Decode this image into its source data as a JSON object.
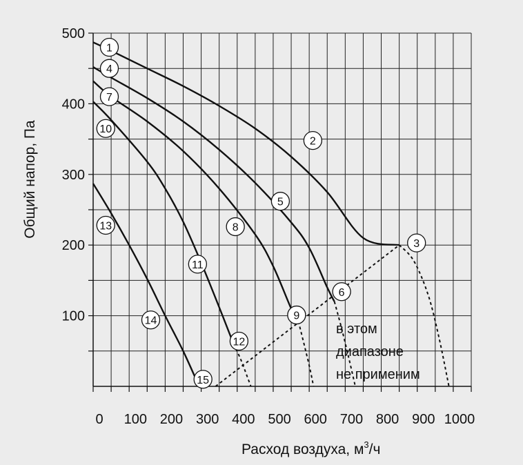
{
  "chart_data": {
    "type": "line",
    "title": "",
    "xlabel": "Расход воздуха, м",
    "xlabel_sup": "3",
    "xlabel_suffix": "/ч",
    "ylabel": "Общий напор, Па",
    "xlim": [
      -50,
      1000
    ],
    "ylim": [
      0,
      500
    ],
    "x_ticks": [
      0,
      100,
      200,
      300,
      400,
      500,
      600,
      700,
      800,
      900,
      1000
    ],
    "x_tick_labels": [
      "0",
      "100",
      "200",
      "300",
      "400",
      "500",
      "600",
      "700",
      "800",
      "900",
      "1000"
    ],
    "y_ticks": [
      100,
      200,
      300,
      400,
      500
    ],
    "y_tick_labels": [
      "100",
      "200",
      "300",
      "400",
      "500"
    ],
    "grid": true,
    "series": [
      {
        "points": [
          [
            -50,
            487
          ],
          [
            0,
            475
          ],
          [
            100,
            450
          ],
          [
            200,
            425
          ],
          [
            300,
            397
          ],
          [
            400,
            365
          ],
          [
            500,
            325
          ],
          [
            600,
            275
          ],
          [
            700,
            210
          ],
          [
            800,
            200
          ]
        ]
      },
      {
        "points": [
          [
            -50,
            452
          ],
          [
            0,
            437
          ],
          [
            100,
            408
          ],
          [
            200,
            375
          ],
          [
            300,
            335
          ],
          [
            400,
            288
          ],
          [
            500,
            232
          ],
          [
            550,
            196
          ],
          [
            600,
            140
          ],
          [
            620,
            120
          ]
        ]
      },
      {
        "points": [
          [
            -50,
            432
          ],
          [
            0,
            410
          ],
          [
            100,
            375
          ],
          [
            200,
            333
          ],
          [
            300,
            280
          ],
          [
            400,
            215
          ],
          [
            450,
            170
          ],
          [
            500,
            110
          ],
          [
            520,
            92
          ]
        ]
      },
      {
        "points": [
          [
            -50,
            403
          ],
          [
            0,
            377
          ],
          [
            100,
            318
          ],
          [
            150,
            280
          ],
          [
            200,
            233
          ],
          [
            250,
            175
          ],
          [
            300,
            112
          ],
          [
            340,
            60
          ]
        ]
      },
      {
        "points": [
          [
            -50,
            287
          ],
          [
            0,
            245
          ],
          [
            50,
            200
          ],
          [
            100,
            152
          ],
          [
            150,
            100
          ],
          [
            200,
            50
          ],
          [
            240,
            5
          ]
        ]
      }
    ],
    "dashed_extensions": [
      {
        "points": [
          [
            800,
            200
          ],
          [
            840,
            178
          ],
          [
            880,
            130
          ],
          [
            910,
            70
          ],
          [
            938,
            0
          ]
        ]
      },
      {
        "points": [
          [
            620,
            120
          ],
          [
            640,
            82
          ],
          [
            660,
            40
          ],
          [
            678,
            0
          ]
        ]
      },
      {
        "points": [
          [
            520,
            92
          ],
          [
            538,
            55
          ],
          [
            552,
            25
          ],
          [
            562,
            0
          ]
        ]
      },
      {
        "points": [
          [
            340,
            60
          ],
          [
            360,
            38
          ],
          [
            377,
            15
          ],
          [
            388,
            0
          ]
        ]
      }
    ],
    "limit_line": {
      "points": [
        [
          290,
          0
        ],
        [
          800,
          200
        ]
      ]
    },
    "markers": [
      {
        "label": "1",
        "x": -5,
        "y": 480
      },
      {
        "label": "2",
        "x": 560,
        "y": 348
      },
      {
        "label": "3",
        "x": 848,
        "y": 203
      },
      {
        "label": "4",
        "x": -5,
        "y": 450
      },
      {
        "label": "5",
        "x": 470,
        "y": 262
      },
      {
        "label": "6",
        "x": 640,
        "y": 134
      },
      {
        "label": "7",
        "x": -5,
        "y": 410
      },
      {
        "label": "8",
        "x": 345,
        "y": 226
      },
      {
        "label": "9",
        "x": 515,
        "y": 101
      },
      {
        "label": "10",
        "x": -15,
        "y": 365
      },
      {
        "label": "11",
        "x": 240,
        "y": 173
      },
      {
        "label": "12",
        "x": 355,
        "y": 64
      },
      {
        "label": "13",
        "x": -15,
        "y": 228
      },
      {
        "label": "14",
        "x": 110,
        "y": 94
      },
      {
        "label": "15",
        "x": 255,
        "y": 10
      }
    ],
    "annotation": [
      "в этом",
      "диапазоне",
      "не применим"
    ]
  }
}
